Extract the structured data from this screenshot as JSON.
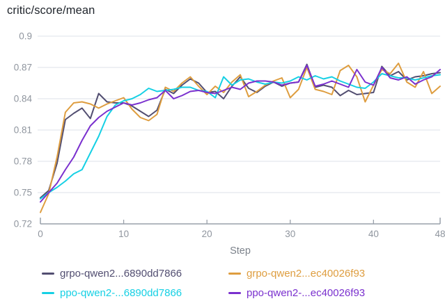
{
  "panel": {
    "title": "critic/score/mean"
  },
  "chart_data": {
    "type": "line",
    "title": "critic/score/mean",
    "xlabel": "Step",
    "ylabel": "",
    "xlim": [
      0,
      48
    ],
    "ylim": [
      0.72,
      0.9
    ],
    "x_ticks": [
      0,
      10,
      20,
      30,
      40,
      48
    ],
    "y_ticks": [
      0.9,
      0.87,
      0.84,
      0.81,
      0.78,
      0.75,
      0.72
    ],
    "grid": "horizontal-only",
    "legend_position": "bottom",
    "colors": {
      "grid_line": "#e9ebf1",
      "axis_line": "#99a0aa",
      "tick_label": "#8f959e",
      "axis_title": "#7c828b",
      "chart_title": "#1f242b"
    },
    "x": [
      0,
      1,
      2,
      3,
      4,
      5,
      6,
      7,
      8,
      9,
      10,
      11,
      12,
      13,
      14,
      15,
      16,
      17,
      18,
      19,
      20,
      21,
      22,
      23,
      24,
      25,
      26,
      27,
      28,
      29,
      30,
      31,
      32,
      33,
      34,
      35,
      36,
      37,
      38,
      39,
      40,
      41,
      42,
      43,
      44,
      45,
      46,
      47,
      48
    ],
    "series": [
      {
        "name": "grpo-qwen2...6890dd7866",
        "color": "#524e71",
        "values": [
          0.745,
          0.752,
          0.778,
          0.82,
          0.826,
          0.831,
          0.821,
          0.845,
          0.837,
          0.836,
          0.836,
          0.833,
          0.828,
          0.823,
          0.829,
          0.849,
          0.845,
          0.853,
          0.859,
          0.855,
          0.846,
          0.847,
          0.84,
          0.852,
          0.861,
          0.85,
          0.846,
          0.852,
          0.856,
          0.852,
          0.855,
          0.856,
          0.873,
          0.851,
          0.853,
          0.851,
          0.843,
          0.848,
          0.844,
          0.845,
          0.846,
          0.871,
          0.862,
          0.866,
          0.858,
          0.861,
          0.862,
          0.864,
          0.865
        ]
      },
      {
        "name": "grpo-qwen2...ec40026f93",
        "color": "#de9d3f",
        "values": [
          0.731,
          0.749,
          0.784,
          0.827,
          0.836,
          0.837,
          0.835,
          0.831,
          0.835,
          0.838,
          0.841,
          0.83,
          0.822,
          0.819,
          0.825,
          0.851,
          0.847,
          0.855,
          0.861,
          0.852,
          0.844,
          0.852,
          0.846,
          0.856,
          0.863,
          0.842,
          0.847,
          0.853,
          0.857,
          0.86,
          0.841,
          0.849,
          0.87,
          0.849,
          0.847,
          0.844,
          0.867,
          0.872,
          0.861,
          0.837,
          0.853,
          0.868,
          0.864,
          0.874,
          0.856,
          0.851,
          0.866,
          0.845,
          0.852
        ]
      },
      {
        "name": "ppo-qwen2-...6890dd7866",
        "color": "#15d0e4",
        "values": [
          0.744,
          0.75,
          0.755,
          0.761,
          0.768,
          0.772,
          0.788,
          0.804,
          0.823,
          0.834,
          0.838,
          0.84,
          0.844,
          0.85,
          0.847,
          0.848,
          0.849,
          0.851,
          0.851,
          0.848,
          0.847,
          0.841,
          0.861,
          0.853,
          0.858,
          0.859,
          0.856,
          0.854,
          0.856,
          0.855,
          0.857,
          0.861,
          0.858,
          0.862,
          0.859,
          0.861,
          0.857,
          0.854,
          0.851,
          0.85,
          0.856,
          0.864,
          0.862,
          0.86,
          0.86,
          0.858,
          0.86,
          0.862,
          0.863
        ]
      },
      {
        "name": "ppo-qwen2-...ec40026f93",
        "color": "#7a30ce",
        "values": [
          0.741,
          0.75,
          0.759,
          0.772,
          0.784,
          0.8,
          0.814,
          0.822,
          0.828,
          0.832,
          0.836,
          0.834,
          0.836,
          0.839,
          0.841,
          0.848,
          0.84,
          0.843,
          0.847,
          0.848,
          0.846,
          0.845,
          0.848,
          0.851,
          0.849,
          0.855,
          0.857,
          0.857,
          0.856,
          0.853,
          0.855,
          0.856,
          0.872,
          0.852,
          0.854,
          0.857,
          0.854,
          0.851,
          0.868,
          0.856,
          0.853,
          0.87,
          0.86,
          0.858,
          0.861,
          0.854,
          0.858,
          0.861,
          0.868
        ]
      }
    ]
  }
}
